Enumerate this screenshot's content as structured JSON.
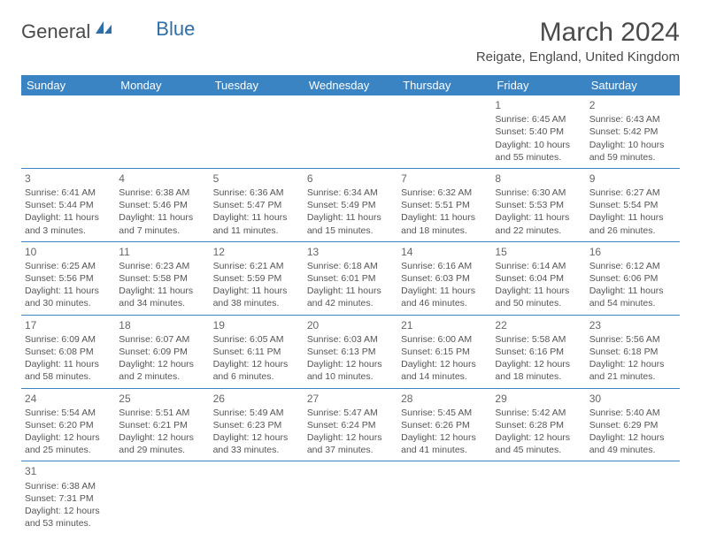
{
  "logo": {
    "text1": "General",
    "text2": "Blue"
  },
  "title": "March 2024",
  "location": "Reigate, England, United Kingdom",
  "colors": {
    "header_bg": "#3b84c4",
    "header_text": "#ffffff",
    "border": "#3b84c4",
    "text": "#555555",
    "title_text": "#4a4a4a"
  },
  "weekdays": [
    "Sunday",
    "Monday",
    "Tuesday",
    "Wednesday",
    "Thursday",
    "Friday",
    "Saturday"
  ],
  "weeks": [
    [
      null,
      null,
      null,
      null,
      null,
      {
        "n": "1",
        "sunrise": "Sunrise: 6:45 AM",
        "sunset": "Sunset: 5:40 PM",
        "day1": "Daylight: 10 hours",
        "day2": "and 55 minutes."
      },
      {
        "n": "2",
        "sunrise": "Sunrise: 6:43 AM",
        "sunset": "Sunset: 5:42 PM",
        "day1": "Daylight: 10 hours",
        "day2": "and 59 minutes."
      }
    ],
    [
      {
        "n": "3",
        "sunrise": "Sunrise: 6:41 AM",
        "sunset": "Sunset: 5:44 PM",
        "day1": "Daylight: 11 hours",
        "day2": "and 3 minutes."
      },
      {
        "n": "4",
        "sunrise": "Sunrise: 6:38 AM",
        "sunset": "Sunset: 5:46 PM",
        "day1": "Daylight: 11 hours",
        "day2": "and 7 minutes."
      },
      {
        "n": "5",
        "sunrise": "Sunrise: 6:36 AM",
        "sunset": "Sunset: 5:47 PM",
        "day1": "Daylight: 11 hours",
        "day2": "and 11 minutes."
      },
      {
        "n": "6",
        "sunrise": "Sunrise: 6:34 AM",
        "sunset": "Sunset: 5:49 PM",
        "day1": "Daylight: 11 hours",
        "day2": "and 15 minutes."
      },
      {
        "n": "7",
        "sunrise": "Sunrise: 6:32 AM",
        "sunset": "Sunset: 5:51 PM",
        "day1": "Daylight: 11 hours",
        "day2": "and 18 minutes."
      },
      {
        "n": "8",
        "sunrise": "Sunrise: 6:30 AM",
        "sunset": "Sunset: 5:53 PM",
        "day1": "Daylight: 11 hours",
        "day2": "and 22 minutes."
      },
      {
        "n": "9",
        "sunrise": "Sunrise: 6:27 AM",
        "sunset": "Sunset: 5:54 PM",
        "day1": "Daylight: 11 hours",
        "day2": "and 26 minutes."
      }
    ],
    [
      {
        "n": "10",
        "sunrise": "Sunrise: 6:25 AM",
        "sunset": "Sunset: 5:56 PM",
        "day1": "Daylight: 11 hours",
        "day2": "and 30 minutes."
      },
      {
        "n": "11",
        "sunrise": "Sunrise: 6:23 AM",
        "sunset": "Sunset: 5:58 PM",
        "day1": "Daylight: 11 hours",
        "day2": "and 34 minutes."
      },
      {
        "n": "12",
        "sunrise": "Sunrise: 6:21 AM",
        "sunset": "Sunset: 5:59 PM",
        "day1": "Daylight: 11 hours",
        "day2": "and 38 minutes."
      },
      {
        "n": "13",
        "sunrise": "Sunrise: 6:18 AM",
        "sunset": "Sunset: 6:01 PM",
        "day1": "Daylight: 11 hours",
        "day2": "and 42 minutes."
      },
      {
        "n": "14",
        "sunrise": "Sunrise: 6:16 AM",
        "sunset": "Sunset: 6:03 PM",
        "day1": "Daylight: 11 hours",
        "day2": "and 46 minutes."
      },
      {
        "n": "15",
        "sunrise": "Sunrise: 6:14 AM",
        "sunset": "Sunset: 6:04 PM",
        "day1": "Daylight: 11 hours",
        "day2": "and 50 minutes."
      },
      {
        "n": "16",
        "sunrise": "Sunrise: 6:12 AM",
        "sunset": "Sunset: 6:06 PM",
        "day1": "Daylight: 11 hours",
        "day2": "and 54 minutes."
      }
    ],
    [
      {
        "n": "17",
        "sunrise": "Sunrise: 6:09 AM",
        "sunset": "Sunset: 6:08 PM",
        "day1": "Daylight: 11 hours",
        "day2": "and 58 minutes."
      },
      {
        "n": "18",
        "sunrise": "Sunrise: 6:07 AM",
        "sunset": "Sunset: 6:09 PM",
        "day1": "Daylight: 12 hours",
        "day2": "and 2 minutes."
      },
      {
        "n": "19",
        "sunrise": "Sunrise: 6:05 AM",
        "sunset": "Sunset: 6:11 PM",
        "day1": "Daylight: 12 hours",
        "day2": "and 6 minutes."
      },
      {
        "n": "20",
        "sunrise": "Sunrise: 6:03 AM",
        "sunset": "Sunset: 6:13 PM",
        "day1": "Daylight: 12 hours",
        "day2": "and 10 minutes."
      },
      {
        "n": "21",
        "sunrise": "Sunrise: 6:00 AM",
        "sunset": "Sunset: 6:15 PM",
        "day1": "Daylight: 12 hours",
        "day2": "and 14 minutes."
      },
      {
        "n": "22",
        "sunrise": "Sunrise: 5:58 AM",
        "sunset": "Sunset: 6:16 PM",
        "day1": "Daylight: 12 hours",
        "day2": "and 18 minutes."
      },
      {
        "n": "23",
        "sunrise": "Sunrise: 5:56 AM",
        "sunset": "Sunset: 6:18 PM",
        "day1": "Daylight: 12 hours",
        "day2": "and 21 minutes."
      }
    ],
    [
      {
        "n": "24",
        "sunrise": "Sunrise: 5:54 AM",
        "sunset": "Sunset: 6:20 PM",
        "day1": "Daylight: 12 hours",
        "day2": "and 25 minutes."
      },
      {
        "n": "25",
        "sunrise": "Sunrise: 5:51 AM",
        "sunset": "Sunset: 6:21 PM",
        "day1": "Daylight: 12 hours",
        "day2": "and 29 minutes."
      },
      {
        "n": "26",
        "sunrise": "Sunrise: 5:49 AM",
        "sunset": "Sunset: 6:23 PM",
        "day1": "Daylight: 12 hours",
        "day2": "and 33 minutes."
      },
      {
        "n": "27",
        "sunrise": "Sunrise: 5:47 AM",
        "sunset": "Sunset: 6:24 PM",
        "day1": "Daylight: 12 hours",
        "day2": "and 37 minutes."
      },
      {
        "n": "28",
        "sunrise": "Sunrise: 5:45 AM",
        "sunset": "Sunset: 6:26 PM",
        "day1": "Daylight: 12 hours",
        "day2": "and 41 minutes."
      },
      {
        "n": "29",
        "sunrise": "Sunrise: 5:42 AM",
        "sunset": "Sunset: 6:28 PM",
        "day1": "Daylight: 12 hours",
        "day2": "and 45 minutes."
      },
      {
        "n": "30",
        "sunrise": "Sunrise: 5:40 AM",
        "sunset": "Sunset: 6:29 PM",
        "day1": "Daylight: 12 hours",
        "day2": "and 49 minutes."
      }
    ],
    [
      {
        "n": "31",
        "sunrise": "Sunrise: 6:38 AM",
        "sunset": "Sunset: 7:31 PM",
        "day1": "Daylight: 12 hours",
        "day2": "and 53 minutes."
      },
      null,
      null,
      null,
      null,
      null,
      null
    ]
  ]
}
